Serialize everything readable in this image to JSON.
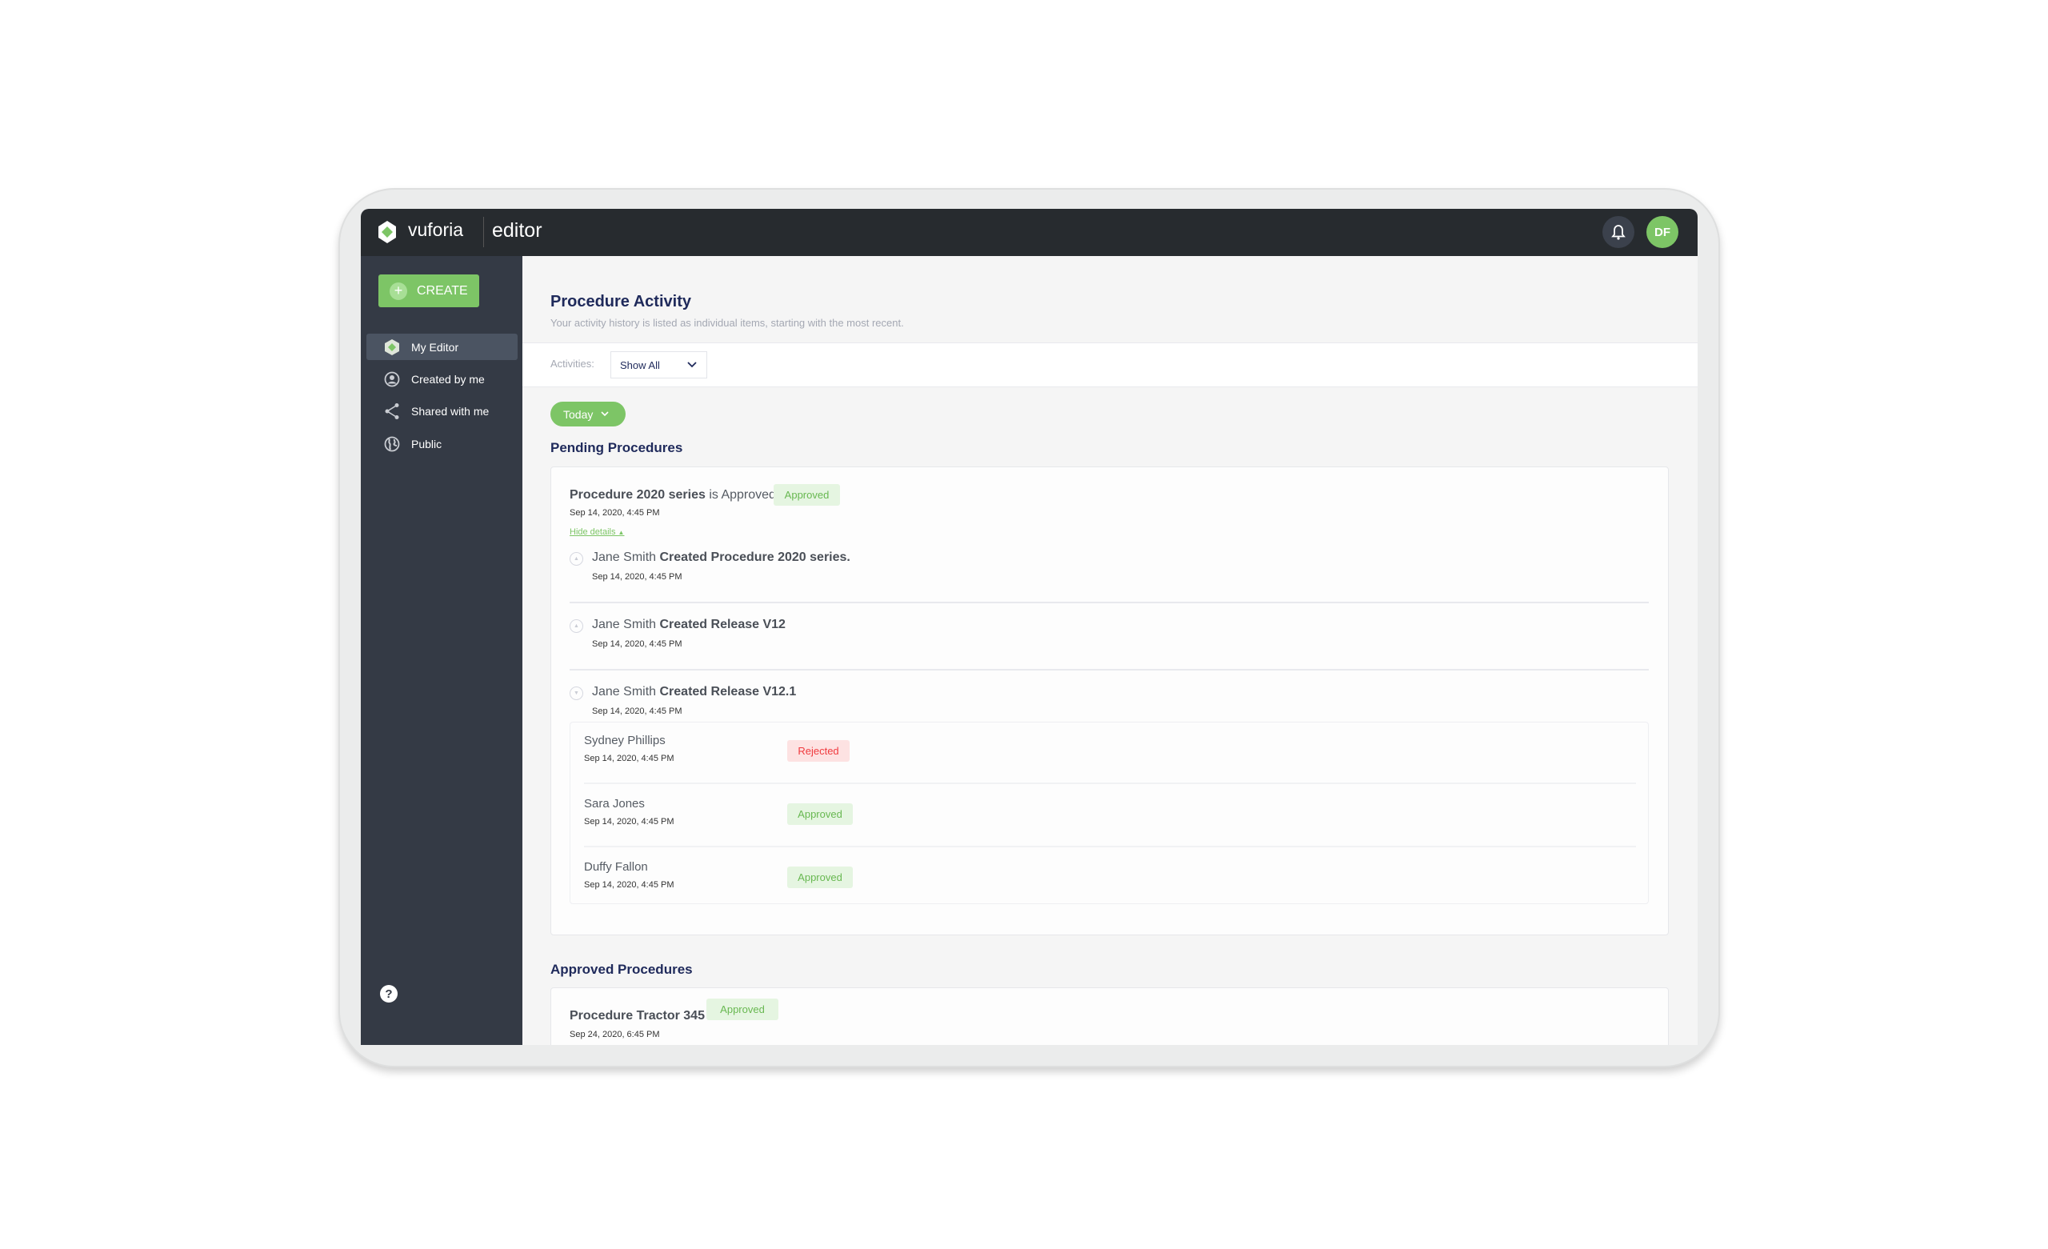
{
  "app": {
    "brand": "vuforia",
    "product": "editor",
    "user_initials": "DF"
  },
  "colors": {
    "accent": "#7dc566",
    "topbar": "#272b2f",
    "sidebar": "#343a45",
    "title": "#1f2a5b",
    "approved": "#68b851",
    "rejected": "#f03a3e"
  },
  "sidebar": {
    "create_label": "CREATE",
    "items": [
      {
        "label": "My Editor",
        "icon": "vuforia-logo-icon",
        "active": true
      },
      {
        "label": "Created by me",
        "icon": "user-circle-icon"
      },
      {
        "label": "Shared with me",
        "icon": "share-icon"
      },
      {
        "label": "Public",
        "icon": "globe-icon"
      }
    ],
    "help_icon": "question-icon"
  },
  "main": {
    "title": "Procedure Activity",
    "subtitle": "Your activity history is listed as individual items, starting with the most recent.",
    "filter": {
      "label": "Activities:",
      "value": "Show All"
    },
    "period": "Today",
    "pending": {
      "heading": "Pending Procedures",
      "item": {
        "name": "Procedure 2020 series",
        "suffix": "is Approved.",
        "status": "Approved",
        "date": "Sep 14, 2020, 4:45 PM",
        "toggle": "Hide details"
      },
      "events": [
        {
          "actor": "Jane Smith",
          "action": "Created Procedure 2020 series.",
          "date": "Sep 14, 2020, 4:45 PM"
        },
        {
          "actor": "Jane Smith",
          "action": "Created Release V12",
          "date": "Sep 14, 2020, 4:45 PM"
        },
        {
          "actor": "Jane Smith",
          "action": "Created Release V12.1",
          "date": "Sep 14, 2020, 4:45 PM"
        }
      ],
      "reviewers": [
        {
          "name": "Sydney Phillips",
          "date": "Sep 14, 2020, 4:45 PM",
          "status": "Rejected"
        },
        {
          "name": "Sara Jones",
          "date": "Sep 14, 2020, 4:45 PM",
          "status": "Approved"
        },
        {
          "name": "Duffy Fallon",
          "date": "Sep 14, 2020, 4:45 PM",
          "status": "Approved"
        }
      ]
    },
    "approved": {
      "heading": "Approved Procedures",
      "item": {
        "name": "Procedure Tractor 345",
        "status": "Approved",
        "date": "Sep 24, 2020, 6:45 PM"
      }
    }
  }
}
